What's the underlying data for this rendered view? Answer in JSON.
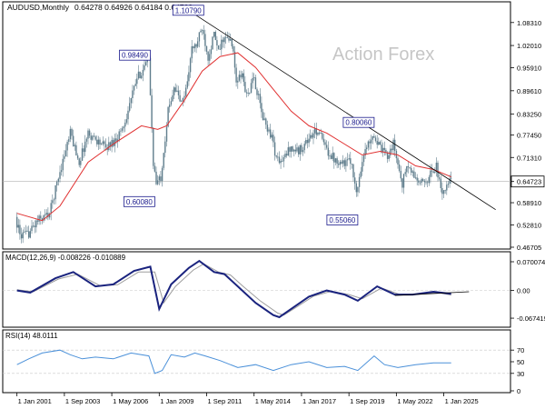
{
  "chart_data": [
    {
      "type": "candlestick",
      "pane": "price",
      "symbol_label": "AUDUSD,Monthly",
      "ohlc_label": "0.64278 0.64926 0.64184 0.64723",
      "watermark": "Action Forex",
      "ylim": [
        0.46705,
        1.11
      ],
      "y_ticks": [
        "1.08310",
        "1.02010",
        "0.95910",
        "0.89610",
        "0.83250",
        "0.77450",
        "0.71310",
        "0.64723",
        "0.58910",
        "0.52810",
        "0.46705"
      ],
      "current_price": "0.64723",
      "x_tick_labels": [
        "1 Jan 2001",
        "1 Sep 2003",
        "1 May 2006",
        "1 Jan 2009",
        "1 Sep 2011",
        "1 May 2014",
        "1 Jan 2017",
        "1 Sep 2019",
        "1 May 2022",
        "1 Jan 2025"
      ],
      "price_points": [
        [
          "2001-01",
          0.55
        ],
        [
          "2001-04",
          0.5
        ],
        [
          "2001-09",
          0.5
        ],
        [
          "2002-04",
          0.54
        ],
        [
          "2002-12",
          0.56
        ],
        [
          "2003-06",
          0.66
        ],
        [
          "2004-02",
          0.78
        ],
        [
          "2004-08",
          0.7
        ],
        [
          "2005-02",
          0.78
        ],
        [
          "2005-08",
          0.76
        ],
        [
          "2006-02",
          0.74
        ],
        [
          "2006-08",
          0.76
        ],
        [
          "2007-02",
          0.8
        ],
        [
          "2007-06",
          0.86
        ],
        [
          "2007-11",
          0.93
        ],
        [
          "2008-07",
          0.98
        ],
        [
          "2008-10",
          0.7
        ],
        [
          "2008-12",
          0.64
        ],
        [
          "2009-03",
          0.66
        ],
        [
          "2009-08",
          0.84
        ],
        [
          "2009-12",
          0.91
        ],
        [
          "2010-05",
          0.86
        ],
        [
          "2010-08",
          0.9
        ],
        [
          "2010-12",
          1.01
        ],
        [
          "2011-03",
          1.02
        ],
        [
          "2011-07",
          1.07
        ],
        [
          "2011-11",
          0.99
        ],
        [
          "2012-03",
          1.05
        ],
        [
          "2012-06",
          1.0
        ],
        [
          "2012-09",
          1.04
        ],
        [
          "2013-03",
          1.03
        ],
        [
          "2013-06",
          0.92
        ],
        [
          "2013-10",
          0.94
        ],
        [
          "2014-01",
          0.88
        ],
        [
          "2014-06",
          0.93
        ],
        [
          "2014-12",
          0.82
        ],
        [
          "2015-06",
          0.77
        ],
        [
          "2015-09",
          0.71
        ],
        [
          "2016-01",
          0.7
        ],
        [
          "2016-06",
          0.74
        ],
        [
          "2016-12",
          0.73
        ],
        [
          "2017-06",
          0.76
        ],
        [
          "2018-01",
          0.79
        ],
        [
          "2018-06",
          0.74
        ],
        [
          "2018-12",
          0.71
        ],
        [
          "2019-06",
          0.7
        ],
        [
          "2019-12",
          0.7
        ],
        [
          "2020-03",
          0.61
        ],
        [
          "2020-07",
          0.71
        ],
        [
          "2021-02",
          0.78
        ],
        [
          "2021-08",
          0.73
        ],
        [
          "2021-12",
          0.72
        ],
        [
          "2022-04",
          0.75
        ],
        [
          "2022-10",
          0.64
        ],
        [
          "2023-01",
          0.69
        ],
        [
          "2023-10",
          0.64
        ],
        [
          "2024-02",
          0.65
        ],
        [
          "2024-09",
          0.69
        ],
        [
          "2024-12",
          0.62
        ],
        [
          "2025-04",
          0.63
        ],
        [
          "2025-06",
          0.65
        ]
      ],
      "moving_average": [
        [
          "2001-01",
          0.56
        ],
        [
          "2002-06",
          0.54
        ],
        [
          "2003-06",
          0.58
        ],
        [
          "2005-01",
          0.7
        ],
        [
          "2006-06",
          0.75
        ],
        [
          "2008-01",
          0.8
        ],
        [
          "2008-12",
          0.79
        ],
        [
          "2009-06",
          0.8
        ],
        [
          "2010-06",
          0.87
        ],
        [
          "2011-06",
          0.95
        ],
        [
          "2012-06",
          0.99
        ],
        [
          "2013-06",
          1.0
        ],
        [
          "2014-06",
          0.96
        ],
        [
          "2015-06",
          0.9
        ],
        [
          "2016-06",
          0.84
        ],
        [
          "2017-06",
          0.8
        ],
        [
          "2018-06",
          0.78
        ],
        [
          "2019-06",
          0.75
        ],
        [
          "2020-06",
          0.72
        ],
        [
          "2021-06",
          0.73
        ],
        [
          "2022-06",
          0.72
        ],
        [
          "2023-06",
          0.69
        ],
        [
          "2024-06",
          0.68
        ],
        [
          "2025-06",
          0.66
        ]
      ],
      "trendline": {
        "from": [
          "2010-12",
          1.1079
        ],
        "to": [
          "2027-12",
          0.57
        ]
      },
      "annotations": [
        {
          "text": "1.10790",
          "x": "2011-07",
          "y": 1.1079,
          "box_side": "left"
        },
        {
          "text": "0.98490",
          "x": "2008-07",
          "y": 0.9849,
          "box_side": "left"
        },
        {
          "text": "0.60080",
          "x": "2008-10",
          "y": 0.6008,
          "box_side": "left"
        },
        {
          "text": "0.80060",
          "x": "2021-02",
          "y": 0.8006,
          "box_side": "left"
        },
        {
          "text": "0.55060",
          "x": "2020-03",
          "y": 0.5506,
          "box_side": "left"
        }
      ],
      "colors": {
        "candles": "#5f7d8c",
        "moving_average": "#e03030",
        "trendline": "#000000",
        "annotation": "#1a1a8c",
        "grid": "#c8c8c8"
      }
    },
    {
      "type": "line",
      "pane": "macd",
      "label": "MACD(12,26,9) -0.008226 -0.010889",
      "ylim": [
        -0.085,
        0.09
      ],
      "y_ticks": [
        "0.070074",
        "0.00",
        "-0.067419"
      ],
      "series": [
        {
          "role": "main",
          "points": [
            [
              "2001-01",
              0.0
            ],
            [
              "2001-10",
              -0.005
            ],
            [
              "2003-03",
              0.03
            ],
            [
              "2004-03",
              0.045
            ],
            [
              "2005-06",
              0.01
            ],
            [
              "2006-06",
              0.015
            ],
            [
              "2007-08",
              0.048
            ],
            [
              "2008-07",
              0.058
            ],
            [
              "2009-01",
              -0.045
            ],
            [
              "2009-09",
              0.015
            ],
            [
              "2010-09",
              0.055
            ],
            [
              "2011-04",
              0.072
            ],
            [
              "2012-02",
              0.045
            ],
            [
              "2012-09",
              0.04
            ],
            [
              "2013-06",
              0.01
            ],
            [
              "2014-06",
              -0.03
            ],
            [
              "2015-06",
              -0.06
            ],
            [
              "2015-10",
              -0.065
            ],
            [
              "2016-06",
              -0.045
            ],
            [
              "2017-06",
              -0.015
            ],
            [
              "2018-06",
              0.0
            ],
            [
              "2019-06",
              -0.01
            ],
            [
              "2020-03",
              -0.025
            ],
            [
              "2021-04",
              0.01
            ],
            [
              "2022-04",
              -0.01
            ],
            [
              "2023-04",
              -0.01
            ],
            [
              "2024-06",
              -0.003
            ],
            [
              "2025-06",
              -0.008
            ]
          ]
        },
        {
          "role": "signal",
          "points": [
            [
              "2001-01",
              0.002
            ],
            [
              "2001-12",
              -0.003
            ],
            [
              "2003-05",
              0.028
            ],
            [
              "2004-06",
              0.04
            ],
            [
              "2005-09",
              0.012
            ],
            [
              "2006-09",
              0.014
            ],
            [
              "2007-11",
              0.045
            ],
            [
              "2008-10",
              0.045
            ],
            [
              "2009-04",
              -0.03
            ],
            [
              "2009-12",
              0.01
            ],
            [
              "2010-12",
              0.05
            ],
            [
              "2011-07",
              0.065
            ],
            [
              "2012-05",
              0.045
            ],
            [
              "2013-01",
              0.038
            ],
            [
              "2013-09",
              0.012
            ],
            [
              "2014-09",
              -0.025
            ],
            [
              "2015-09",
              -0.055
            ],
            [
              "2016-01",
              -0.06
            ],
            [
              "2016-09",
              -0.042
            ],
            [
              "2017-09",
              -0.014
            ],
            [
              "2018-09",
              -0.002
            ],
            [
              "2019-09",
              -0.01
            ],
            [
              "2020-06",
              -0.02
            ],
            [
              "2021-07",
              0.006
            ],
            [
              "2022-07",
              -0.009
            ],
            [
              "2023-07",
              -0.01
            ],
            [
              "2024-09",
              -0.005
            ],
            [
              "2025-06",
              -0.011
            ]
          ]
        }
      ],
      "trendline": {
        "from": [
          "2022-04",
          -0.012
        ],
        "to": [
          "2026-06",
          -0.003
        ]
      },
      "colors": {
        "main": "#1a237e",
        "signal": "#9e9e9e",
        "trendline": "#000000"
      }
    },
    {
      "type": "line",
      "pane": "rsi",
      "label": "RSI(14) 48.0111",
      "ylim": [
        0,
        100
      ],
      "y_ticks": [
        "70",
        "50",
        "30",
        "0"
      ],
      "levels": [
        70,
        30
      ],
      "series": [
        {
          "points": [
            [
              "2001-01",
              45
            ],
            [
              "2001-09",
              55
            ],
            [
              "2002-06",
              65
            ],
            [
              "2003-06",
              70
            ],
            [
              "2004-01",
              62
            ],
            [
              "2004-09",
              55
            ],
            [
              "2005-06",
              58
            ],
            [
              "2006-06",
              55
            ],
            [
              "2007-06",
              65
            ],
            [
              "2008-06",
              60
            ],
            [
              "2008-10",
              30
            ],
            [
              "2009-03",
              35
            ],
            [
              "2009-09",
              62
            ],
            [
              "2010-06",
              58
            ],
            [
              "2011-01",
              65
            ],
            [
              "2011-08",
              60
            ],
            [
              "2012-06",
              52
            ],
            [
              "2013-06",
              40
            ],
            [
              "2014-06",
              45
            ],
            [
              "2015-06",
              35
            ],
            [
              "2016-06",
              45
            ],
            [
              "2017-06",
              50
            ],
            [
              "2018-06",
              40
            ],
            [
              "2019-06",
              42
            ],
            [
              "2020-03",
              35
            ],
            [
              "2021-02",
              60
            ],
            [
              "2021-09",
              45
            ],
            [
              "2022-06",
              40
            ],
            [
              "2023-06",
              45
            ],
            [
              "2024-06",
              48
            ],
            [
              "2025-06",
              48
            ]
          ]
        }
      ],
      "colors": {
        "line": "#4a90d9",
        "levels": "#c8c8c8"
      }
    }
  ]
}
